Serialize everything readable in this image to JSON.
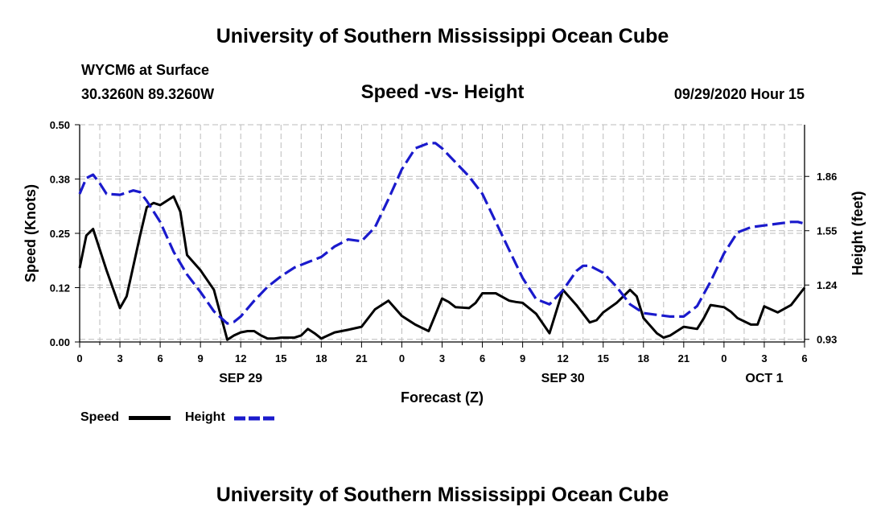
{
  "header": {
    "title": "University of Southern Mississippi Ocean Cube",
    "station": "WYCM6 at Surface",
    "coords": "30.3260N 89.3260W",
    "subtitle": "Speed -vs- Height",
    "datetime": "09/29/2020 Hour 15"
  },
  "footer": {
    "title": "University of Southern Mississippi Ocean Cube"
  },
  "colors": {
    "speed": "#000000",
    "height": "#1a1acc",
    "grid": "#bbbbbb"
  },
  "chart_data": {
    "type": "line",
    "title": "Speed -vs- Height",
    "xlabel": "Forecast (Z)",
    "ylabel": "Speed (Knots)",
    "y2label": "Height (feet)",
    "xlim": [
      0,
      54
    ],
    "ylim": [
      0,
      0.5
    ],
    "y2lim": [
      0.915,
      2.155
    ],
    "x_ticks": [
      0,
      1.5,
      3,
      4.5,
      6,
      7.5,
      9,
      10.5,
      12,
      13.5,
      15,
      16.5,
      18,
      19.5,
      21,
      22.5,
      24,
      25.5,
      27,
      28.5,
      30,
      31.5,
      33,
      34.5,
      36,
      37.5,
      39,
      40.5,
      42,
      43.5,
      45,
      46.5,
      48,
      49.5,
      51,
      52.5,
      54
    ],
    "x_labels": [
      {
        "x": 0,
        "label": "0"
      },
      {
        "x": 3,
        "label": "3"
      },
      {
        "x": 6,
        "label": "6"
      },
      {
        "x": 9,
        "label": "9"
      },
      {
        "x": 12,
        "label": "12"
      },
      {
        "x": 15,
        "label": "15"
      },
      {
        "x": 18,
        "label": "18"
      },
      {
        "x": 21,
        "label": "21"
      },
      {
        "x": 24,
        "label": "0"
      },
      {
        "x": 27,
        "label": "3"
      },
      {
        "x": 30,
        "label": "6"
      },
      {
        "x": 33,
        "label": "9"
      },
      {
        "x": 36,
        "label": "12"
      },
      {
        "x": 39,
        "label": "15"
      },
      {
        "x": 42,
        "label": "18"
      },
      {
        "x": 45,
        "label": "21"
      },
      {
        "x": 48,
        "label": "0"
      },
      {
        "x": 51,
        "label": "3"
      },
      {
        "x": 54,
        "label": "6"
      }
    ],
    "date_labels": [
      {
        "x": 12,
        "label": "SEP 29"
      },
      {
        "x": 36,
        "label": "SEP 30"
      },
      {
        "x": 51,
        "label": "OCT 1"
      }
    ],
    "y_ticks": [
      {
        "value": 0,
        "label": "0.00"
      },
      {
        "value": 0.125,
        "label": "0.12"
      },
      {
        "value": 0.25,
        "label": "0.25"
      },
      {
        "value": 0.375,
        "label": "0.38"
      },
      {
        "value": 0.5,
        "label": "0.50"
      }
    ],
    "y2_ticks": [
      {
        "value": 0.93,
        "label": "0.93"
      },
      {
        "value": 1.24,
        "label": "1.24"
      },
      {
        "value": 1.55,
        "label": "1.55"
      },
      {
        "value": 1.86,
        "label": "1.86"
      }
    ],
    "series": [
      {
        "name": "Speed",
        "axis": "left",
        "style": "solid",
        "x": [
          0,
          0.5,
          1,
          2,
          3,
          3.5,
          4.5,
          5,
          5.5,
          6,
          7,
          7.5,
          8,
          9,
          10,
          11,
          11.5,
          12,
          12.5,
          13,
          13.5,
          14,
          14.5,
          15,
          16,
          16.5,
          17,
          17.5,
          18,
          18.5,
          19,
          20,
          21,
          22,
          22.5,
          23,
          24,
          25,
          26,
          27,
          27.5,
          28,
          29,
          29.5,
          30,
          31,
          32,
          32.5,
          33,
          34,
          35,
          36,
          37,
          38,
          38.5,
          39,
          40,
          41,
          41.5,
          42,
          43,
          43.5,
          44,
          45,
          46,
          46.5,
          47,
          48,
          48.5,
          49,
          50,
          50.5,
          51,
          52,
          53,
          54
        ],
        "y": [
          0.17,
          0.245,
          0.26,
          0.165,
          0.078,
          0.105,
          0.245,
          0.31,
          0.32,
          0.315,
          0.335,
          0.3,
          0.2,
          0.165,
          0.12,
          0.005,
          0.015,
          0.022,
          0.025,
          0.025,
          0.015,
          0.008,
          0.008,
          0.01,
          0.01,
          0.015,
          0.03,
          0.02,
          0.008,
          0.015,
          0.022,
          0.028,
          0.035,
          0.075,
          0.085,
          0.095,
          0.06,
          0.04,
          0.025,
          0.1,
          0.092,
          0.08,
          0.078,
          0.09,
          0.112,
          0.112,
          0.095,
          0.092,
          0.09,
          0.065,
          0.02,
          0.12,
          0.085,
          0.045,
          0.05,
          0.068,
          0.09,
          0.12,
          0.105,
          0.055,
          0.02,
          0.01,
          0.015,
          0.035,
          0.03,
          0.055,
          0.085,
          0.08,
          0.07,
          0.055,
          0.04,
          0.04,
          0.082,
          0.068,
          0.085,
          0.125
        ]
      },
      {
        "name": "Height",
        "axis": "right",
        "style": "dashed",
        "x": [
          0,
          0.5,
          1,
          1.5,
          2,
          3,
          4,
          4.5,
          5,
          6,
          7,
          8,
          9,
          10,
          11,
          11.5,
          12,
          13,
          14,
          15,
          16,
          17,
          18,
          19,
          20,
          21,
          22,
          23,
          24,
          25,
          26,
          26.5,
          27,
          28,
          29,
          30,
          31,
          32,
          33,
          34,
          35,
          36,
          37,
          37.5,
          38,
          39,
          40,
          41,
          42,
          43,
          44,
          45,
          46,
          47,
          48,
          49,
          50,
          51,
          52,
          53,
          53.5,
          54
        ],
        "y": [
          1.76,
          1.85,
          1.87,
          1.82,
          1.76,
          1.755,
          1.78,
          1.77,
          1.72,
          1.6,
          1.43,
          1.3,
          1.2,
          1.09,
          1.02,
          1.03,
          1.06,
          1.15,
          1.23,
          1.29,
          1.34,
          1.37,
          1.4,
          1.46,
          1.5,
          1.49,
          1.57,
          1.73,
          1.9,
          2.02,
          2.05,
          2.05,
          2.02,
          1.94,
          1.86,
          1.76,
          1.6,
          1.44,
          1.28,
          1.16,
          1.13,
          1.21,
          1.32,
          1.35,
          1.35,
          1.31,
          1.23,
          1.13,
          1.08,
          1.07,
          1.06,
          1.06,
          1.12,
          1.26,
          1.42,
          1.54,
          1.57,
          1.58,
          1.59,
          1.6,
          1.6,
          1.59
        ]
      }
    ]
  },
  "legend": {
    "speed_label": "Speed",
    "height_label": "Height"
  }
}
